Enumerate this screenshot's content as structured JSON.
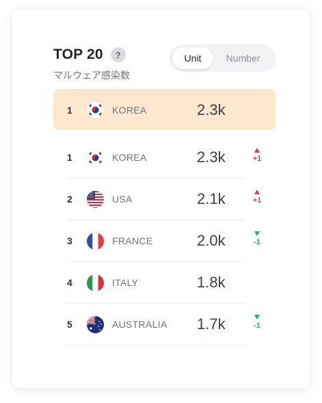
{
  "header": {
    "title": "TOP 20",
    "help_label": "?",
    "subtitle": "マルウェア感染数"
  },
  "toggle": {
    "options": [
      "Unit",
      "Number"
    ],
    "selected": "Unit"
  },
  "highlight_row": {
    "rank": "1",
    "country": "KOREA",
    "flag_icon": "korea-flag-icon",
    "value": "2.3k"
  },
  "rows": [
    {
      "rank": "1",
      "country": "KOREA",
      "flag_icon": "korea-flag-icon",
      "value": "2.3k",
      "trend": "up",
      "change": "+1"
    },
    {
      "rank": "2",
      "country": "USA",
      "flag_icon": "usa-flag-icon",
      "value": "2.1k",
      "trend": "up",
      "change": "+1"
    },
    {
      "rank": "3",
      "country": "FRANCE",
      "flag_icon": "france-flag-icon",
      "value": "2.0k",
      "trend": "down",
      "change": "-1"
    },
    {
      "rank": "4",
      "country": "ITALY",
      "flag_icon": "italy-flag-icon",
      "value": "1.8k"
    },
    {
      "rank": "5",
      "country": "AUSTRALIA",
      "flag_icon": "australia-flag-icon",
      "value": "1.7k",
      "trend": "down",
      "change": "-1"
    }
  ],
  "colors": {
    "highlight": "#fde8cf",
    "up": "#e2403f",
    "down": "#27b35a"
  }
}
